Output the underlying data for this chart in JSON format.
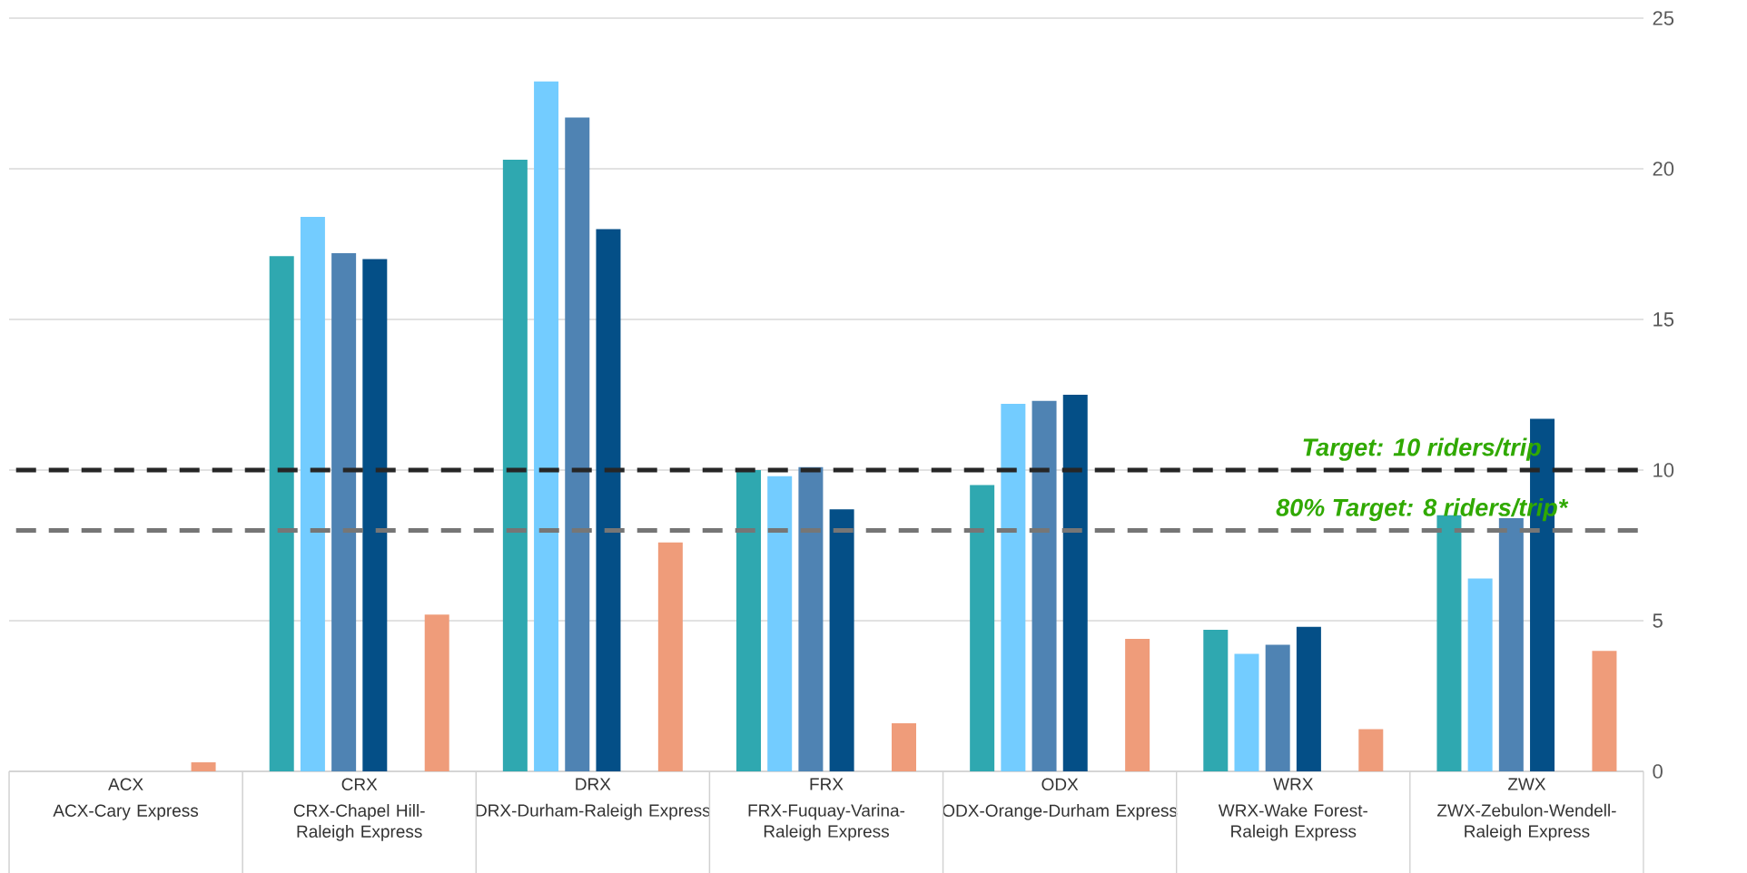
{
  "chart_data": {
    "type": "bar",
    "categories": [
      "ACX-Cary Express",
      "CRX-Chapel Hill-Raleigh Express",
      "DRX-Durham-Raleigh Express",
      "FRX-Fuquay-Varina-Raleigh Express",
      "ODX-Orange-Durham Express",
      "WRX-Wake Forest-Raleigh Express",
      "ZWX-Zebulon-Wendell-Raleigh Express"
    ],
    "annotations": [
      "ACX",
      "CRX",
      "DRX",
      "FRX",
      "ODX",
      "WRX",
      "ZWX"
    ],
    "series": [
      {
        "color": "#2fa8b0",
        "values": [
          null,
          17.1,
          20.3,
          10.0,
          9.5,
          4.7,
          8.5
        ]
      },
      {
        "color": "#73ccff",
        "values": [
          null,
          18.4,
          22.9,
          9.8,
          12.2,
          3.9,
          6.4
        ]
      },
      {
        "color": "#4f83b3",
        "values": [
          null,
          17.2,
          21.7,
          10.1,
          12.3,
          4.2,
          8.4
        ]
      },
      {
        "color": "#044f87",
        "values": [
          null,
          17.0,
          18.0,
          8.7,
          12.5,
          4.8,
          11.7
        ]
      },
      {
        "values": [
          null,
          null,
          null,
          null,
          null,
          null,
          null
        ]
      },
      {
        "color": "#ef9c7a",
        "values": [
          0.3,
          5.2,
          7.6,
          1.6,
          4.4,
          1.4,
          4.0
        ]
      }
    ],
    "ylim": [
      0,
      25
    ],
    "yticks": [
      0,
      5,
      10,
      15,
      20,
      25
    ],
    "grid": "y",
    "ref_lines": [
      {
        "axis": "y",
        "value": 10,
        "label": "Target: 10 riders/trip",
        "color": "#262626",
        "line_style": "dashed"
      },
      {
        "axis": "y",
        "value": 8,
        "label": "80% Target: 8 riders/trip*",
        "color": "#767676",
        "line_style": "dashed"
      }
    ]
  }
}
